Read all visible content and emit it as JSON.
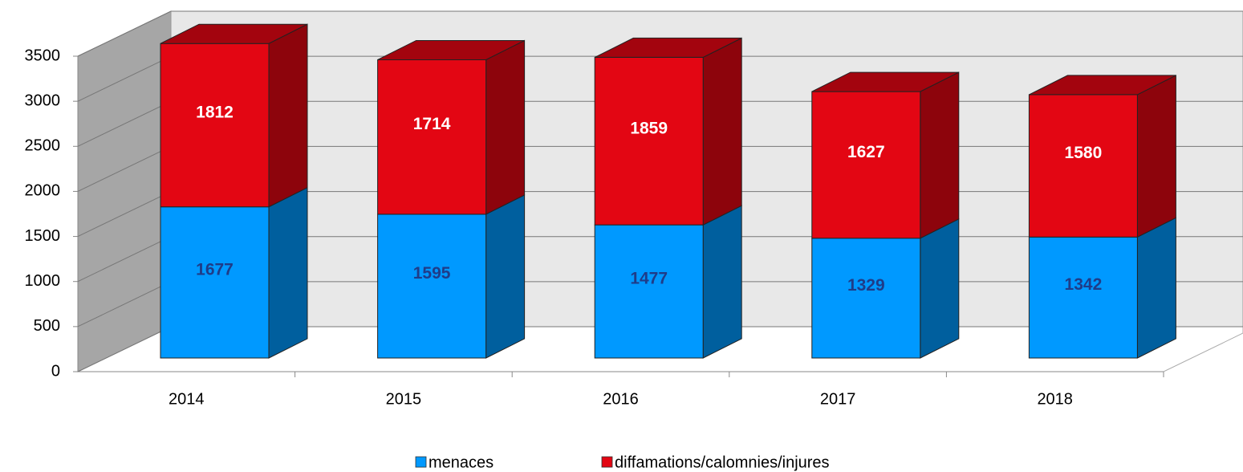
{
  "chart_data": {
    "type": "bar",
    "stacked": true,
    "categories": [
      "2014",
      "2015",
      "2016",
      "2017",
      "2018"
    ],
    "series": [
      {
        "name": "menaces",
        "color": "#0099ff",
        "label_color": "#1f3c88",
        "values": [
          1677,
          1595,
          1477,
          1329,
          1342
        ]
      },
      {
        "name": "diffamations/calomnies/injures",
        "color": "#e30613",
        "label_color": "#ffffff",
        "values": [
          1812,
          1714,
          1859,
          1627,
          1580
        ]
      }
    ],
    "ylim": [
      0,
      3500
    ],
    "yticks": [
      0,
      500,
      1000,
      1500,
      2000,
      2500,
      3000,
      3500
    ],
    "grid": true,
    "legend": "bottom"
  }
}
